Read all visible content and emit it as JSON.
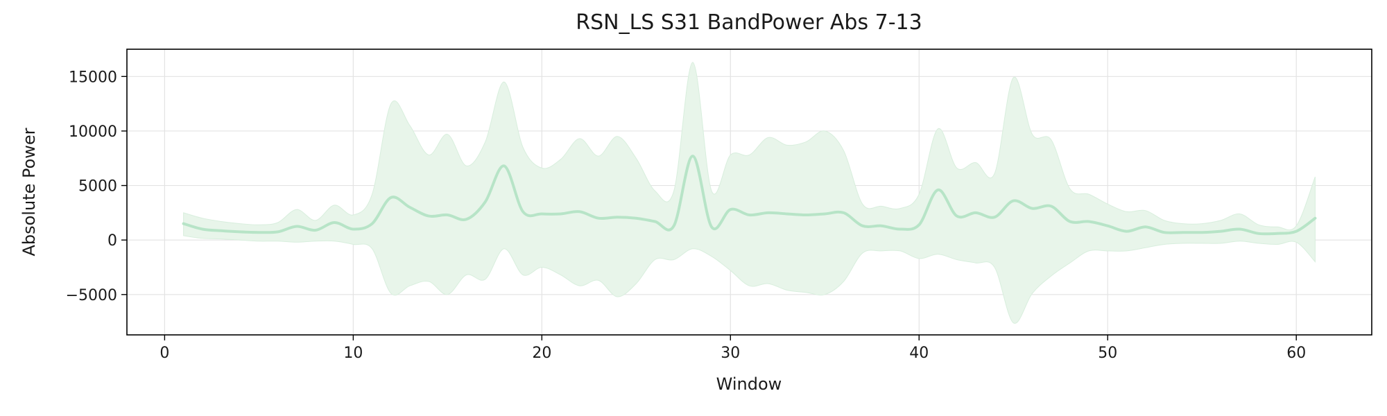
{
  "chart_data": {
    "type": "line",
    "title": "RSN_LS S31 BandPower Abs 7-13",
    "xlabel": "Window",
    "ylabel": "Absolute Power",
    "xlim": [
      -2,
      64
    ],
    "ylim": [
      -8700,
      17500
    ],
    "xticks": [
      0,
      10,
      20,
      30,
      40,
      50,
      60
    ],
    "yticks": [
      -5000,
      0,
      5000,
      10000,
      15000
    ],
    "ytick_labels": [
      "−5000",
      "0",
      "5000",
      "10000",
      "15000"
    ],
    "grid": true,
    "colors": {
      "line": "#b7e4c7",
      "band": "#e8f5ea",
      "band_edge": "#d8eedd"
    },
    "series": [
      {
        "x": [
          1,
          2,
          3,
          4,
          5,
          6,
          7,
          8,
          9,
          10,
          11,
          12,
          13,
          14,
          15,
          16,
          17,
          18,
          19,
          20,
          21,
          22,
          23,
          24,
          25,
          26,
          27,
          28,
          29,
          30,
          31,
          32,
          33,
          34,
          35,
          36,
          37,
          38,
          39,
          40,
          41,
          42,
          43,
          44,
          45,
          46,
          47,
          48,
          49,
          50,
          51,
          52,
          53,
          54,
          55,
          56,
          57,
          58,
          59,
          60,
          61
        ],
        "mean": [
          1500,
          1000,
          850,
          750,
          700,
          750,
          1250,
          900,
          1600,
          1000,
          1500,
          3900,
          3000,
          2200,
          2300,
          1900,
          3500,
          6800,
          2600,
          2400,
          2400,
          2600,
          2000,
          2100,
          2000,
          1700,
          1300,
          7700,
          1200,
          2800,
          2300,
          2500,
          2400,
          2300,
          2400,
          2500,
          1300,
          1300,
          1000,
          1400,
          4600,
          2200,
          2500,
          2100,
          3600,
          2900,
          3100,
          1700,
          1700,
          1300,
          800,
          1200,
          700,
          700,
          700,
          800,
          1000,
          600,
          600,
          800,
          2000
        ],
        "lower": [
          400,
          150,
          100,
          0,
          -100,
          -100,
          -200,
          -100,
          -100,
          -400,
          -800,
          -4900,
          -4200,
          -3800,
          -5000,
          -3200,
          -3600,
          -800,
          -3200,
          -2500,
          -3200,
          -4200,
          -3700,
          -5200,
          -4000,
          -1800,
          -1800,
          -800,
          -1500,
          -2800,
          -4200,
          -4000,
          -4600,
          -4800,
          -5000,
          -3800,
          -1200,
          -1000,
          -1000,
          -1700,
          -1300,
          -1800,
          -2100,
          -2500,
          -7600,
          -4900,
          -3300,
          -2100,
          -1000,
          -1000,
          -1000,
          -700,
          -400,
          -300,
          -300,
          -300,
          -100,
          -300,
          -400,
          -200,
          -2000
        ],
        "upper": [
          2500,
          2000,
          1700,
          1500,
          1400,
          1600,
          2800,
          1800,
          3200,
          2300,
          4200,
          12500,
          10500,
          7800,
          9700,
          6800,
          9000,
          14500,
          8500,
          6600,
          7400,
          9300,
          7700,
          9500,
          7500,
          4500,
          4500,
          16300,
          4500,
          7800,
          7800,
          9400,
          8700,
          9000,
          10000,
          8200,
          3300,
          3100,
          2900,
          4200,
          10200,
          6600,
          7100,
          6100,
          14900,
          9700,
          9200,
          4700,
          4200,
          3300,
          2600,
          2700,
          1800,
          1500,
          1500,
          1800,
          2400,
          1400,
          1200,
          1300,
          5800
        ]
      }
    ]
  }
}
